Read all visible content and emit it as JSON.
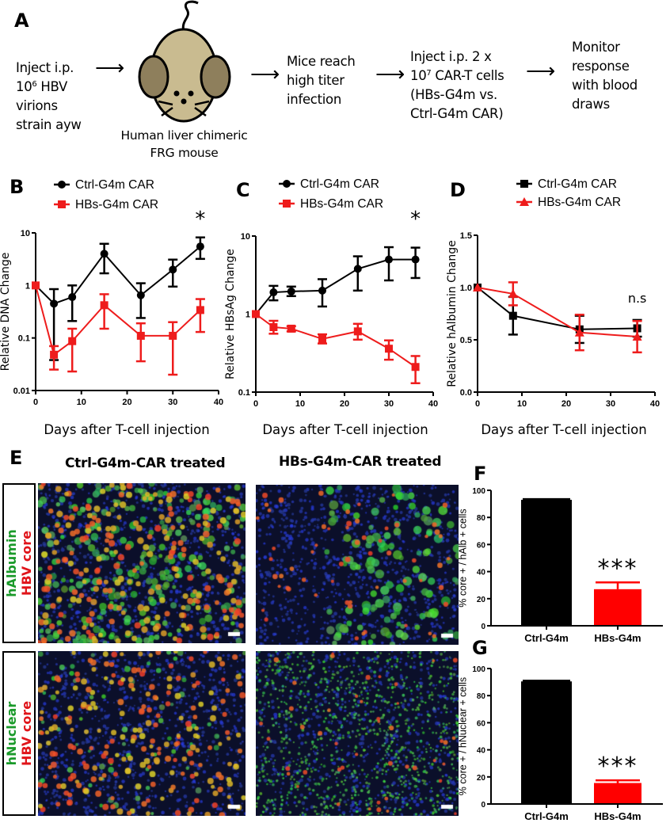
{
  "panel_labels": {
    "A": "A",
    "B": "B",
    "C": "C",
    "D": "D",
    "E": "E",
    "F": "F",
    "G": "G"
  },
  "schematic": {
    "step1": {
      "line1": "Inject i.p.",
      "line2_pre": "10",
      "line2_sup": "6",
      "line2_post": " HBV",
      "line3": "virions",
      "line4": "strain ayw"
    },
    "mouse_caption": {
      "line1": "Human liver chimeric",
      "line2": "FRG mouse"
    },
    "step2": {
      "line1": "Mice reach",
      "line2": "high titer",
      "line3": "infection"
    },
    "step3": {
      "line1": "Inject i.p. 2 x",
      "line2_pre": "10",
      "line2_sup": "7",
      "line2_post": " CAR-T cells",
      "line3": "(HBs-G4m vs.",
      "line4": "Ctrl-G4m CAR)"
    },
    "step4": {
      "line1": "Monitor",
      "line2": "response",
      "line3": "with blood",
      "line4": "draws"
    },
    "arrow_glyph": "⟶",
    "mouse_colors": {
      "body": "#c9bb90",
      "ears": "#8e7f5c"
    }
  },
  "micrographs": {
    "col_headers": [
      "Ctrl-G4m-CAR treated",
      "HBs-G4m-CAR treated"
    ],
    "row1_label": {
      "green": "hAlbumin",
      "red": "HBV core"
    },
    "row2_label": {
      "green": "hNuclear",
      "red": "HBV core"
    },
    "colors": {
      "green": "#1a9a2a",
      "red": "#e0141a"
    }
  },
  "chart_data": [
    {
      "id": "B",
      "type": "line",
      "xlabel": "Days after T-cell injection",
      "ylabel": "Relative  DNA Change",
      "yscale": "log",
      "xlim": [
        0,
        40
      ],
      "ylim": [
        0.01,
        10
      ],
      "xticks": [
        0,
        10,
        20,
        30,
        40
      ],
      "yticks": [
        10,
        1,
        0.1,
        0.01
      ],
      "ytick_labels": [
        "10",
        "1",
        "0.1",
        "0.01"
      ],
      "legend_position": "top-left",
      "annotations": [
        {
          "text": "*",
          "x": 36
        }
      ],
      "series": [
        {
          "name": "Ctrl-G4m CAR",
          "color": "#000000",
          "marker": "circle",
          "x": [
            0,
            4,
            8,
            15,
            23,
            30,
            36
          ],
          "y": [
            1,
            0.45,
            0.6,
            4,
            0.65,
            2,
            5.5
          ],
          "err_high": [
            1,
            0.85,
            1.0,
            6.2,
            1.1,
            3.1,
            8.2
          ],
          "err_low": [
            1,
            0.038,
            0.21,
            1.7,
            0.24,
            0.95,
            3.2
          ]
        },
        {
          "name": "HBs-G4m CAR",
          "color": "#ee1c1c",
          "marker": "square",
          "x": [
            0,
            4,
            8,
            15,
            23,
            30,
            36
          ],
          "y": [
            1,
            0.048,
            0.087,
            0.42,
            0.11,
            0.11,
            0.34
          ],
          "err_high": [
            1,
            0.07,
            0.15,
            0.68,
            0.19,
            0.2,
            0.55
          ],
          "err_low": [
            1,
            0.025,
            0.023,
            0.15,
            0.036,
            0.02,
            0.13
          ]
        }
      ]
    },
    {
      "id": "C",
      "type": "line",
      "xlabel": "Days after T-cell injection",
      "ylabel": "Relative  HBsAg Change",
      "yscale": "log",
      "xlim": [
        0,
        40
      ],
      "ylim": [
        0.1,
        10
      ],
      "xticks": [
        0,
        10,
        20,
        30,
        40
      ],
      "yticks": [
        10,
        1,
        0.1
      ],
      "ytick_labels": [
        "10",
        "1",
        "0.1"
      ],
      "legend_position": "top-left",
      "annotations": [
        {
          "text": "*",
          "x": 36
        }
      ],
      "series": [
        {
          "name": "Ctrl-G4m CAR",
          "color": "#000000",
          "marker": "circle",
          "x": [
            0,
            4,
            8,
            15,
            23,
            30,
            36
          ],
          "y": [
            1,
            1.9,
            1.95,
            2.0,
            3.8,
            5.0,
            5.0
          ],
          "err_high": [
            1,
            2.3,
            2.25,
            2.8,
            5.5,
            7.2,
            7.1
          ],
          "err_low": [
            1,
            1.5,
            1.7,
            1.25,
            2.0,
            2.7,
            2.9
          ]
        },
        {
          "name": "HBs-G4m CAR",
          "color": "#ee1c1c",
          "marker": "square",
          "x": [
            0,
            4,
            8,
            15,
            23,
            30,
            36
          ],
          "y": [
            1,
            0.68,
            0.65,
            0.48,
            0.6,
            0.36,
            0.21
          ],
          "err_high": [
            1,
            0.82,
            0.7,
            0.55,
            0.75,
            0.46,
            0.29
          ],
          "err_low": [
            1,
            0.56,
            0.6,
            0.42,
            0.47,
            0.26,
            0.13
          ]
        }
      ]
    },
    {
      "id": "D",
      "type": "line",
      "xlabel": "Days after T-cell injection",
      "ylabel": "Relative hAlbumin Change",
      "yscale": "linear",
      "xlim": [
        0,
        40
      ],
      "ylim": [
        0,
        1.5
      ],
      "xticks": [
        0,
        10,
        20,
        30,
        40
      ],
      "yticks": [
        1.5,
        1.0,
        0.5,
        0.0
      ],
      "ytick_labels": [
        "1.5",
        "1.0",
        "0.5",
        "0.0"
      ],
      "legend_position": "top",
      "annotations": [
        {
          "text": "n.s",
          "x": 36
        }
      ],
      "series": [
        {
          "name": "Ctrl-G4m CAR",
          "color": "#000000",
          "marker": "square",
          "x": [
            0,
            8,
            23,
            36
          ],
          "y": [
            1.0,
            0.73,
            0.6,
            0.61
          ],
          "err_high": [
            1.0,
            0.91,
            0.73,
            0.69
          ],
          "err_low": [
            1.0,
            0.55,
            0.47,
            0.53
          ]
        },
        {
          "name": "HBs-G4m CAR",
          "color": "#ee1c1c",
          "marker": "triangle",
          "x": [
            0,
            8,
            23,
            36
          ],
          "y": [
            1.0,
            0.94,
            0.57,
            0.53
          ],
          "err_high": [
            1.0,
            1.05,
            0.74,
            0.68
          ],
          "err_low": [
            1.0,
            0.83,
            0.4,
            0.38
          ]
        }
      ]
    },
    {
      "id": "F",
      "type": "bar",
      "ylabel": "% core + / hAlb + cells",
      "ylim": [
        0,
        100
      ],
      "yticks": [
        0,
        20,
        40,
        60,
        80,
        100
      ],
      "categories": [
        "Ctrl-G4m",
        "HBs-G4m"
      ],
      "values": [
        93,
        27
      ],
      "err_high": [
        93.5,
        32
      ],
      "colors": [
        "#000000",
        "#ff0000"
      ],
      "annotations": [
        {
          "text": "***",
          "category": "HBs-G4m"
        }
      ]
    },
    {
      "id": "G",
      "type": "bar",
      "ylabel": "% core + / hNuclear + cells",
      "ylim": [
        0,
        100
      ],
      "yticks": [
        0,
        20,
        40,
        60,
        80,
        100
      ],
      "categories": [
        "Ctrl-G4m",
        "HBs-G4m"
      ],
      "values": [
        90.5,
        15.5
      ],
      "err_high": [
        91,
        17.5
      ],
      "colors": [
        "#000000",
        "#ff0000"
      ],
      "annotations": [
        {
          "text": "***",
          "category": "HBs-G4m"
        }
      ]
    }
  ]
}
